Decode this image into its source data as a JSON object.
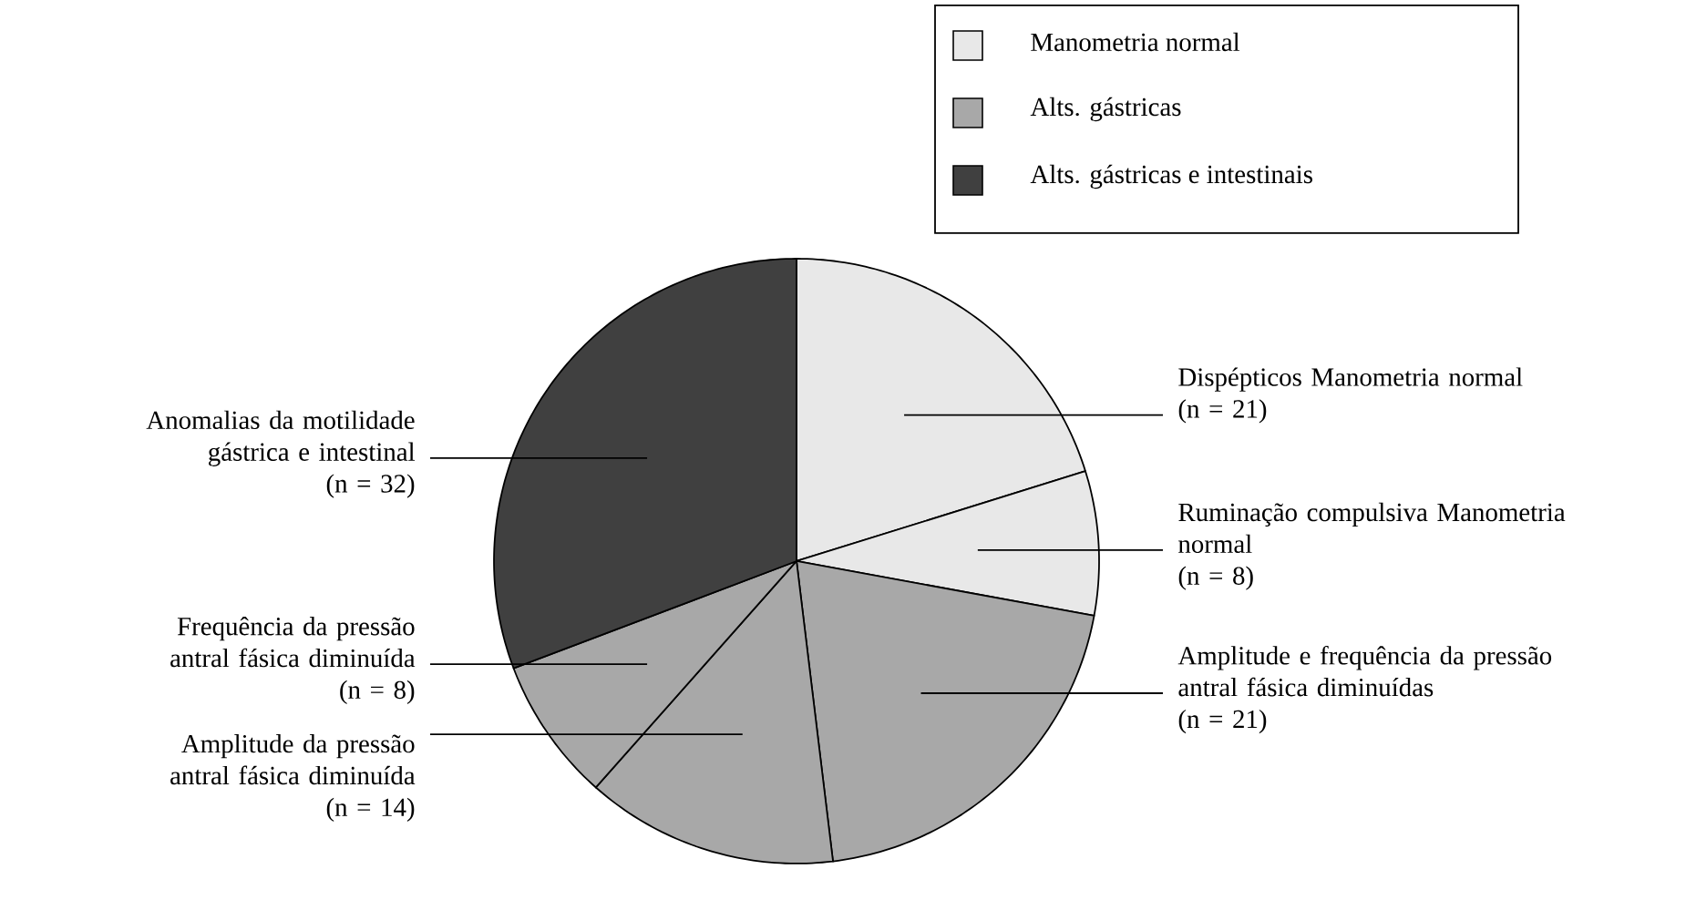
{
  "chart_data": {
    "type": "pie",
    "categories": [
      "Dispépticos Manometria normal",
      "Ruminação compulsiva Manometria normal",
      "Amplitude e frequência da pressão antral fásica diminuídas",
      "Amplitude da pressão antral fásica diminuída",
      "Frequência da pressão antral fásica diminuída",
      "Anomalias da motilidade gástrica e intestinal"
    ],
    "values": [
      21,
      8,
      21,
      14,
      8,
      32
    ],
    "colors": [
      "#e8e8e8",
      "#e8e8e8",
      "#a8a8a8",
      "#a8a8a8",
      "#a8a8a8",
      "#404040"
    ],
    "value_labels": [
      "(n = 21)",
      "(n = 8)",
      "(n = 21)",
      "(n = 14)",
      "(n = 8)",
      "(n = 32)"
    ],
    "annotations": [
      "Manometria normal",
      "Alts. gástricas",
      "Alts. gástricas e intestinais"
    ]
  }
}
